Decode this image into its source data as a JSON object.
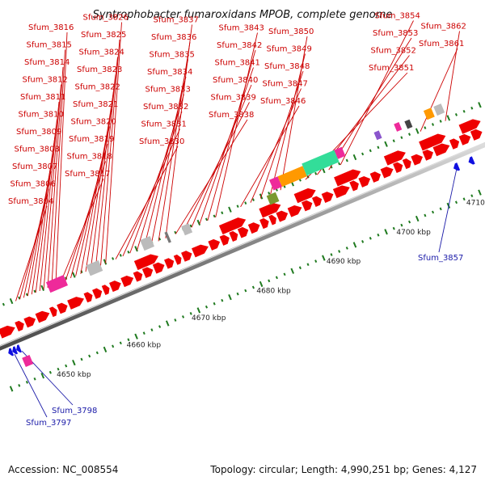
{
  "title": "Syntrophobacter fumaroxidans MPOB, complete genome",
  "footer": {
    "accession": "Accession: NC_008554",
    "summary": "Topology: circular; Length: 4,990,251 bp; Genes: 4,127"
  },
  "position_axis": {
    "unit": "kbp",
    "tick_labels": [
      "4650 kbp",
      "4660 kbp",
      "4670 kbp",
      "4680 kbp",
      "4690 kbp",
      "4700 kbp",
      "4710 kbp"
    ]
  },
  "upper_gene_labels": [
    "Sfum_3804",
    "Sfum_3806",
    "Sfum_3807",
    "Sfum_3808",
    "Sfum_3809",
    "Sfum_3810",
    "Sfum_3811",
    "Sfum_3812",
    "Sfum_3814",
    "Sfum_3815",
    "Sfum_3816",
    "Sfum_3817",
    "Sfum_3818",
    "Sfum_3819",
    "Sfum_3820",
    "Sfum_3821",
    "Sfum_3822",
    "Sfum_3823",
    "Sfum_3824",
    "Sfum_3825",
    "Sfum_3826",
    "Sfum_3830",
    "Sfum_3831",
    "Sfum_3832",
    "Sfum_3833",
    "Sfum_3834",
    "Sfum_3835",
    "Sfum_3836",
    "Sfum_3837",
    "Sfum_3838",
    "Sfum_3839",
    "Sfum_3840",
    "Sfum_3841",
    "Sfum_3842",
    "Sfum_3843",
    "Sfum_3846",
    "Sfum_3847",
    "Sfum_3848",
    "Sfum_3849",
    "Sfum_3850",
    "Sfum_3851",
    "Sfum_3852",
    "Sfum_3853",
    "Sfum_3854",
    "Sfum_3861",
    "Sfum_3862"
  ],
  "lower_gene_labels": [
    "Sfum_3797",
    "Sfum_3798",
    "Sfum_3857"
  ],
  "colors": {
    "gene_red": "#ee0000",
    "strand_blue": "#1010e0",
    "label_red": "#cc0000",
    "label_blue": "#1a1aa8",
    "backbone": "#808080",
    "tick_green": "#1f7a1f",
    "pseudo_gray": "#bbbbbb",
    "rna_magenta": "#ee2a9a",
    "misc_green": "#33dd99",
    "misc_orange": "#ff9900",
    "misc_purple": "#8a55cc",
    "misc_olive": "#7a9a30"
  }
}
